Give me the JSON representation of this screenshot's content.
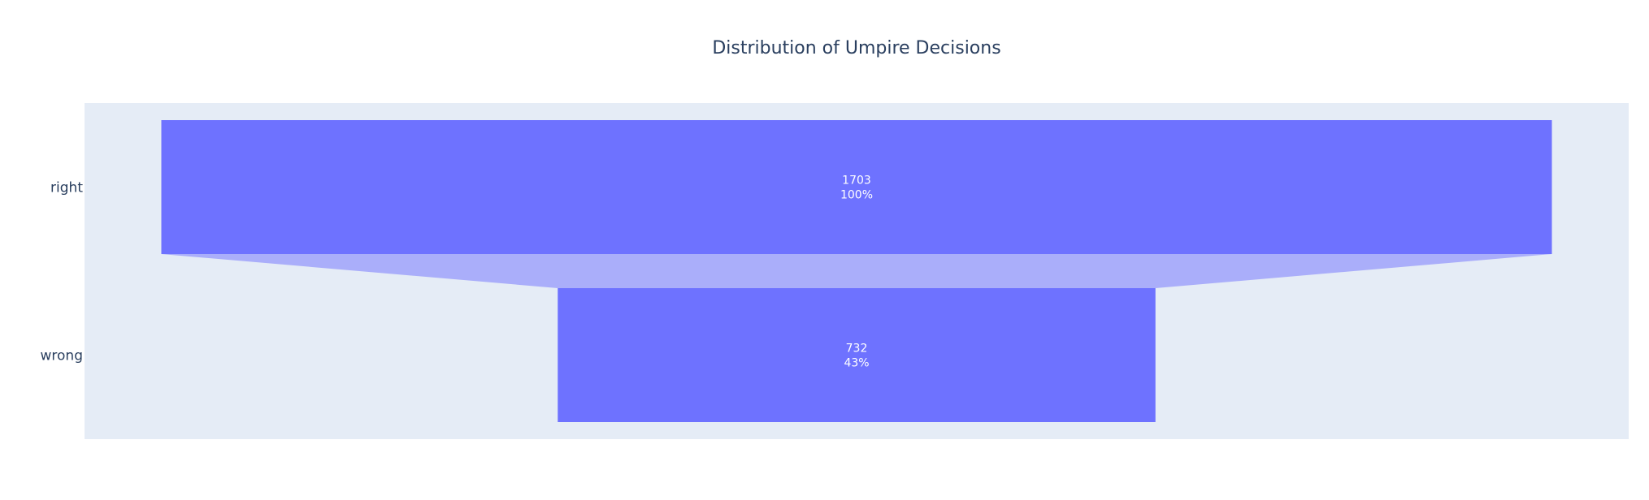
{
  "chart_data": {
    "type": "funnel",
    "title": "Distribution of Umpire Decisions",
    "categories": [
      "right",
      "wrong"
    ],
    "values": [
      1703,
      732
    ],
    "percent_labels": [
      "100%",
      "43%"
    ],
    "grid": false,
    "legend": "none",
    "colors": {
      "plot_background": "#e5ecf6",
      "bar": "#6e72ff",
      "connector": "#aaaefa",
      "text": "#2a3f5f",
      "bar_text": "#ffffff"
    }
  }
}
